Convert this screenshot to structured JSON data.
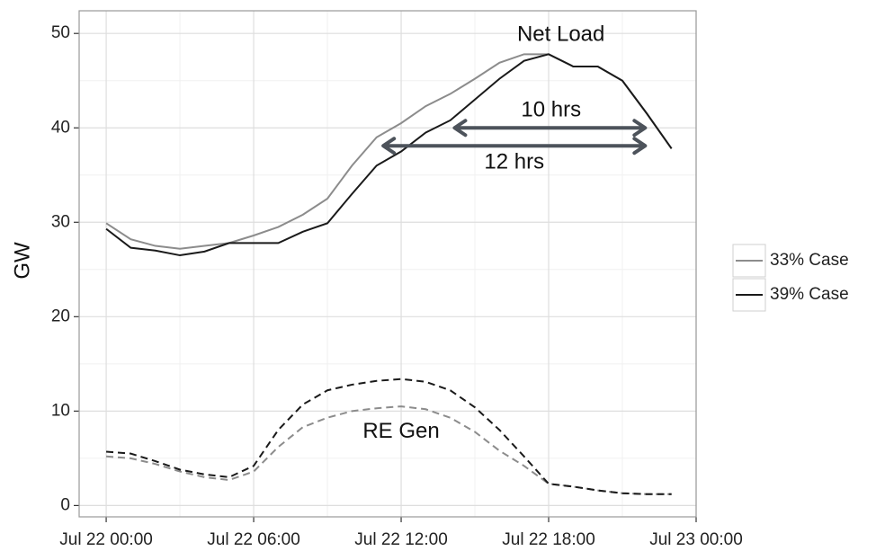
{
  "chart_data": {
    "type": "line",
    "y_label": "GW",
    "x": [
      0,
      1,
      2,
      3,
      4,
      5,
      6,
      7,
      8,
      9,
      10,
      11,
      12,
      13,
      14,
      15,
      16,
      17,
      18,
      19,
      20,
      21,
      22,
      23
    ],
    "xlim": [
      -1.1,
      24
    ],
    "xticks": [
      {
        "value": 0,
        "label": "Jul 22 00:00"
      },
      {
        "value": 6,
        "label": "Jul 22 06:00"
      },
      {
        "value": 12,
        "label": "Jul 22 12:00"
      },
      {
        "value": 18,
        "label": "Jul 22 18:00"
      },
      {
        "value": 24,
        "label": "Jul 23 00:00"
      }
    ],
    "ylim": [
      -1.2,
      52.4
    ],
    "yticks": [
      0,
      10,
      20,
      30,
      40,
      50
    ],
    "grid": true,
    "legend": "right",
    "series": [
      {
        "name": "33% Case",
        "color": "#8c8c8c",
        "values": [
          29.9,
          28.2,
          27.5,
          27.2,
          27.5,
          27.8,
          28.6,
          29.5,
          30.8,
          32.5,
          36,
          39,
          40.5,
          42.3,
          43.6,
          45.2,
          46.9,
          47.8,
          47.8,
          46.5,
          46.5,
          45,
          41.5,
          37.8
        ],
        "re_gen": [
          5.2,
          5.0,
          4.4,
          3.6,
          3.0,
          2.7,
          3.6,
          6.2,
          8.3,
          9.3,
          10,
          10.3,
          10.5,
          10.2,
          9.3,
          7.8,
          5.8,
          4.2,
          2.3,
          2.0,
          1.6,
          1.3,
          1.2,
          1.2
        ]
      },
      {
        "name": "39% Case",
        "color": "#1a1a1a",
        "values": [
          29.3,
          27.3,
          27,
          26.5,
          26.9,
          27.8,
          27.8,
          27.8,
          29,
          29.9,
          33,
          36,
          37.5,
          39.5,
          40.8,
          43,
          45.2,
          47.1,
          47.8,
          46.5,
          46.5,
          45,
          41.5,
          37.8
        ],
        "re_gen": [
          5.7,
          5.5,
          4.7,
          3.8,
          3.3,
          3.0,
          4.2,
          8,
          10.7,
          12.2,
          12.8,
          13.2,
          13.4,
          13.1,
          12.2,
          10.4,
          8,
          5.2,
          2.3,
          2.0,
          1.6,
          1.3,
          1.2,
          1.2
        ]
      }
    ],
    "annotations": [
      {
        "text": "Net Load",
        "x": 18.5,
        "y": 49.8
      },
      {
        "text": "RE Gen",
        "x": 12,
        "y": 7.8
      },
      {
        "text": "10 hrs",
        "x": 18.1,
        "y": 41.8
      },
      {
        "text": "12 hrs",
        "x": 16.6,
        "y": 36.3
      }
    ],
    "arrows": [
      {
        "x": [
          14.1,
          22.0
        ],
        "y": 40
      },
      {
        "x": [
          11.2,
          22.0
        ],
        "y": 38.1
      }
    ]
  }
}
